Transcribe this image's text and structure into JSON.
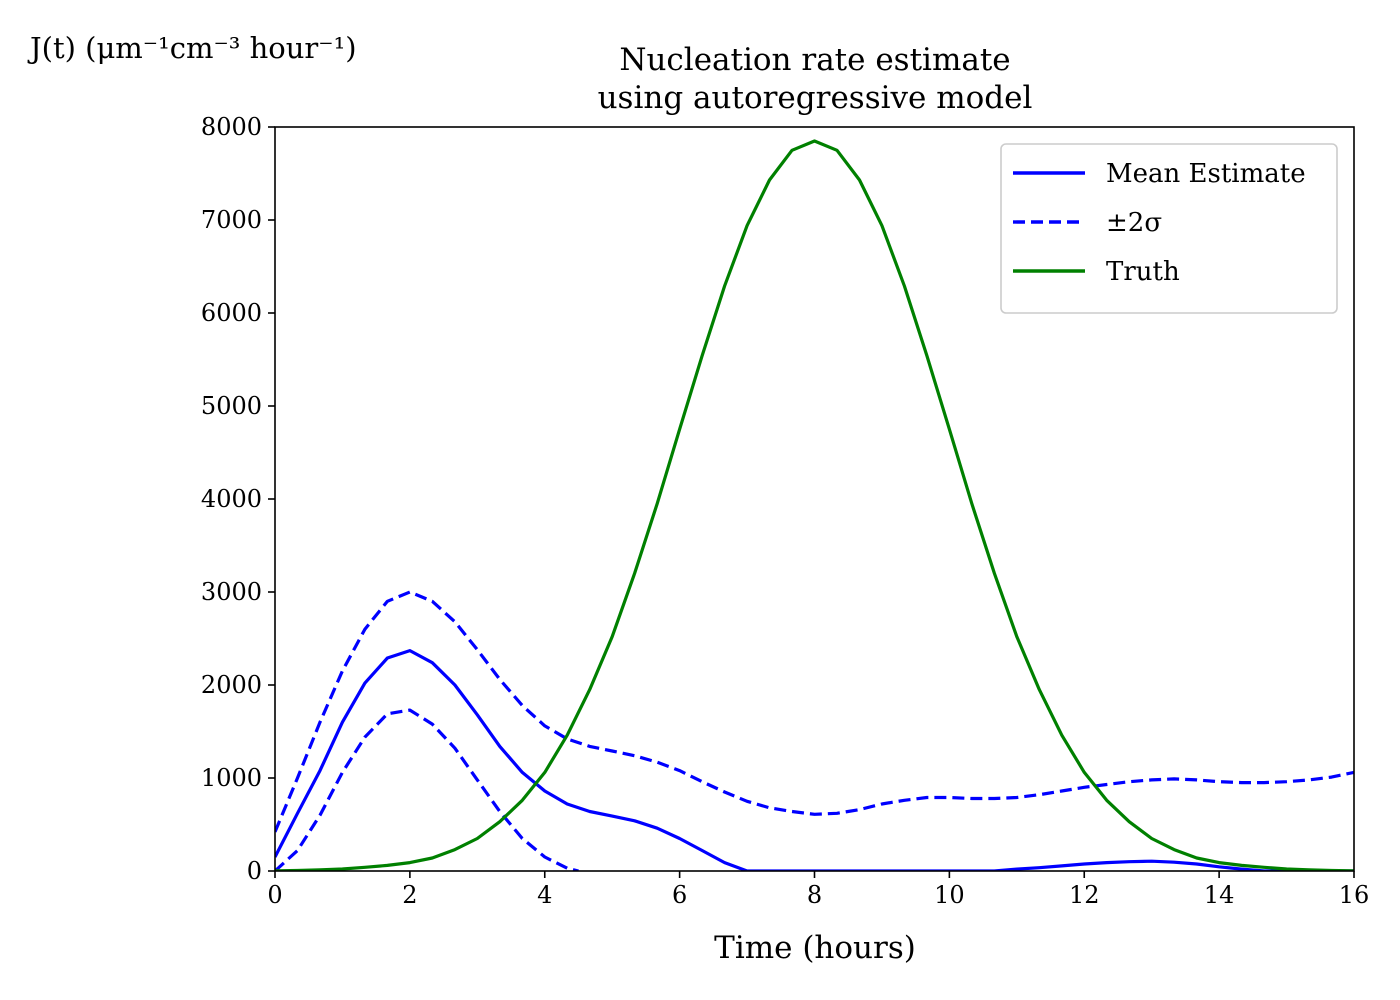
{
  "chart_data": {
    "type": "line",
    "title": [
      "Nucleation rate estimate",
      "using autoregressive model"
    ],
    "xlabel": "Time (hours)",
    "ylabel": "J(t) (μm⁻¹cm⁻³ hour⁻¹)",
    "xlim": [
      0,
      16
    ],
    "ylim": [
      0,
      8000
    ],
    "xticks": [
      0,
      2,
      4,
      6,
      8,
      10,
      12,
      14,
      16
    ],
    "yticks": [
      0,
      1000,
      2000,
      3000,
      4000,
      5000,
      6000,
      7000,
      8000
    ],
    "grid": false,
    "legend_position": "top-right",
    "series": [
      {
        "name": "Mean Estimate",
        "color": "#0000ff",
        "style": "solid",
        "x": [
          0,
          0.333,
          0.667,
          1.0,
          1.333,
          1.667,
          2.0,
          2.333,
          2.667,
          3.0,
          3.333,
          3.667,
          4.0,
          4.333,
          4.667,
          5.0,
          5.333,
          5.667,
          6.0,
          6.333,
          6.667,
          7.0,
          7.333,
          10.667,
          11.0,
          11.333,
          11.667,
          12.0,
          12.333,
          12.667,
          13.0,
          13.333,
          13.667,
          14.0,
          14.333,
          14.667,
          16.0
        ],
        "y": [
          150,
          620,
          1080,
          1600,
          2020,
          2290,
          2370,
          2240,
          2000,
          1680,
          1340,
          1060,
          860,
          720,
          640,
          590,
          540,
          460,
          350,
          220,
          90,
          0,
          0,
          0,
          20,
          35,
          55,
          75,
          90,
          100,
          105,
          95,
          75,
          45,
          20,
          0,
          0
        ]
      },
      {
        "name": "±2σ",
        "color": "#0000ff",
        "style": "dashed",
        "x": [
          0,
          0.333,
          0.667,
          1.0,
          1.333,
          1.667,
          2.0,
          2.333,
          2.667,
          3.0,
          3.333,
          3.667,
          4.0,
          4.333,
          4.667,
          5.0,
          5.333,
          5.667,
          6.0,
          6.333,
          6.667,
          7.0,
          7.333,
          7.667,
          8.0,
          8.333,
          8.667,
          9.0,
          9.333,
          9.667,
          10.0,
          10.333,
          10.667,
          11.0,
          11.333,
          11.667,
          12.0,
          12.333,
          12.667,
          13.0,
          13.333,
          13.667,
          14.0,
          14.333,
          14.667,
          15.0,
          15.333,
          15.667,
          16.0
        ],
        "y": [
          420,
          1000,
          1600,
          2150,
          2600,
          2900,
          3000,
          2900,
          2680,
          2380,
          2060,
          1780,
          1560,
          1420,
          1340,
          1290,
          1240,
          1170,
          1080,
          960,
          850,
          750,
          680,
          640,
          610,
          620,
          660,
          720,
          760,
          790,
          790,
          780,
          780,
          790,
          820,
          860,
          900,
          930,
          960,
          980,
          990,
          980,
          960,
          950,
          950,
          960,
          980,
          1010,
          1060
        ]
      },
      {
        "name": "",
        "legend": false,
        "color": "#0000ff",
        "style": "dashed",
        "x": [
          0,
          0.333,
          0.667,
          1.0,
          1.333,
          1.667,
          2.0,
          2.333,
          2.667,
          3.0,
          3.333,
          3.667,
          4.0,
          4.333,
          4.5
        ],
        "y": [
          0,
          220,
          600,
          1060,
          1440,
          1690,
          1730,
          1580,
          1320,
          980,
          640,
          350,
          150,
          30,
          0
        ]
      },
      {
        "name": "Truth",
        "color": "#008000",
        "style": "solid",
        "x": [
          0,
          0.333,
          0.667,
          1.0,
          1.333,
          1.667,
          2.0,
          2.333,
          2.667,
          3.0,
          3.333,
          3.667,
          4.0,
          4.333,
          4.667,
          5.0,
          5.333,
          5.667,
          6.0,
          6.333,
          6.667,
          7.0,
          7.333,
          7.667,
          8.0,
          8.333,
          8.667,
          9.0,
          9.333,
          9.667,
          10.0,
          10.333,
          10.667,
          11.0,
          11.333,
          11.667,
          12.0,
          12.333,
          12.667,
          13.0,
          13.333,
          13.667,
          14.0,
          14.333,
          14.667,
          15.0,
          15.333,
          15.667,
          16.0
        ],
        "y": [
          2,
          5,
          12,
          22,
          40,
          60,
          90,
          140,
          230,
          350,
          530,
          760,
          1060,
          1460,
          1950,
          2520,
          3200,
          3950,
          4750,
          5540,
          6290,
          6940,
          7430,
          7750,
          7850,
          7750,
          7430,
          6940,
          6290,
          5540,
          4750,
          3950,
          3200,
          2520,
          1950,
          1460,
          1060,
          760,
          530,
          350,
          230,
          140,
          90,
          60,
          40,
          22,
          12,
          5,
          2
        ]
      }
    ]
  }
}
